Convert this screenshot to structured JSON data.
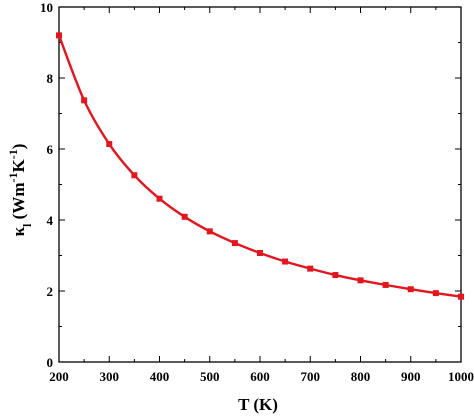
{
  "chart_data": {
    "type": "line",
    "title": "",
    "xlabel": "T (K)",
    "ylabel": {
      "base": "κ",
      "subscript": "l",
      "unit_open": " (Wm",
      "unit_exp1": "-1",
      "unit_mid": "K",
      "unit_exp2": "-1",
      "unit_close": ")"
    },
    "xlim": [
      200,
      1000
    ],
    "ylim": [
      0,
      10
    ],
    "xticks": [
      200,
      300,
      400,
      500,
      600,
      700,
      800,
      900,
      1000
    ],
    "yticks": [
      0,
      2,
      4,
      6,
      8,
      10
    ],
    "grid": false,
    "legend": "none",
    "series": [
      {
        "color": "#e3161d",
        "marker": "square",
        "x": [
          200,
          250,
          300,
          350,
          400,
          450,
          500,
          550,
          600,
          650,
          700,
          750,
          800,
          850,
          900,
          950,
          1000
        ],
        "y": [
          9.2,
          7.37,
          6.14,
          5.26,
          4.6,
          4.09,
          3.68,
          3.35,
          3.07,
          2.83,
          2.63,
          2.45,
          2.3,
          2.17,
          2.05,
          1.94,
          1.84
        ]
      }
    ]
  }
}
